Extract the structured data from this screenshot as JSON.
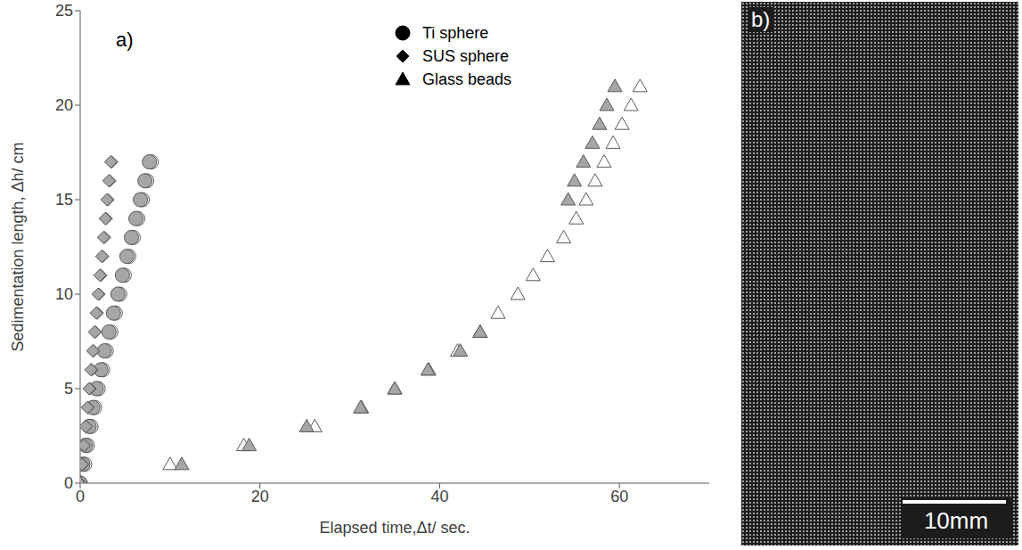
{
  "chart_data": {
    "type": "scatter",
    "panel_label": "a)",
    "x_label": "Elapsed time,Δt/ sec.",
    "y_label": "Sedimentation length, Δh/ cm",
    "xlim": [
      0,
      70
    ],
    "xticks": [
      0,
      20,
      40,
      60
    ],
    "ylim": [
      0,
      25
    ],
    "yticks": [
      0,
      5,
      10,
      15,
      20,
      25
    ],
    "grid": false,
    "legend": "top-right",
    "series": [
      {
        "name": "Ti sphere",
        "marker": "circle",
        "color": "#000000",
        "runs": [
          {
            "color": "#ffffff",
            "x": [
              0,
              0.5,
              0.8,
              1.2,
              1.6,
              2.0,
              2.5,
              2.9,
              3.4,
              3.9,
              4.4,
              4.9,
              5.4,
              5.9,
              6.4,
              6.9,
              7.4,
              7.9
            ],
            "y": [
              0,
              1,
              2,
              3,
              4,
              5,
              6,
              7,
              8,
              9,
              10,
              11,
              12,
              13,
              14,
              15,
              16,
              17
            ]
          },
          {
            "color": "#a6a6a6",
            "x": [
              0,
              0.3,
              0.6,
              1.0,
              1.4,
              1.8,
              2.3,
              2.7,
              3.2,
              3.7,
              4.2,
              4.7,
              5.2,
              5.7,
              6.2,
              6.7,
              7.2,
              7.7
            ],
            "y": [
              0,
              1,
              2,
              3,
              4,
              5,
              6,
              7,
              8,
              9,
              10,
              11,
              12,
              13,
              14,
              15,
              16,
              17
            ]
          }
        ]
      },
      {
        "name": "SUS sphere",
        "marker": "diamond",
        "color": "#000000",
        "runs": [
          {
            "color": "#ffffff",
            "x": [
              0,
              0.3,
              0.5,
              0.7,
              0.9,
              1.1,
              1.3,
              1.5,
              1.7,
              1.9,
              2.1,
              2.3,
              2.5,
              2.7,
              2.9,
              3.1,
              3.3,
              3.5
            ],
            "y": [
              0,
              1,
              2,
              3,
              4,
              5,
              6,
              7,
              8,
              9,
              10,
              11,
              12,
              13,
              14,
              15,
              16,
              17
            ]
          },
          {
            "color": "#a6a6a6",
            "x": [
              0,
              0.2,
              0.4,
              0.6,
              0.8,
              1.0,
              1.2,
              1.4,
              1.6,
              1.8,
              2.0,
              2.2,
              2.4,
              2.6,
              2.8,
              3.0,
              3.2,
              3.4
            ],
            "y": [
              0,
              1,
              2,
              3,
              4,
              5,
              6,
              7,
              8,
              9,
              10,
              11,
              12,
              13,
              14,
              15,
              16,
              17
            ]
          }
        ]
      },
      {
        "name": "Glass beads",
        "marker": "triangle",
        "color": "#000000",
        "runs": [
          {
            "color": "#ffffff",
            "x": [
              0,
              10,
              18.2,
              26.1,
              31.3,
              35,
              38.8,
              42,
              44.5,
              46.5,
              48.7,
              50.4,
              52,
              53.8,
              55.2,
              56.3,
              57.3,
              58.3,
              59.3,
              60.3,
              61.3,
              62.3
            ],
            "y": [
              0,
              1,
              2,
              3,
              4,
              5,
              6,
              7,
              8,
              9,
              10,
              11,
              12,
              13,
              14,
              15,
              16,
              17,
              18,
              19,
              20,
              21
            ]
          },
          {
            "color": "#a6a6a6",
            "x": [
              0,
              11.3,
              18.8,
              25.2,
              31.2,
              35,
              38.7,
              42.3,
              44.5,
              54.3,
              55,
              56,
              57,
              57.8,
              58.6,
              59.5
            ],
            "y": [
              0,
              1,
              2,
              3,
              4,
              5,
              6,
              7,
              8,
              15,
              16,
              17,
              18,
              19,
              20,
              21
            ]
          }
        ]
      }
    ]
  },
  "image_panel": {
    "label": "b)",
    "scale_bar": "10mm"
  }
}
